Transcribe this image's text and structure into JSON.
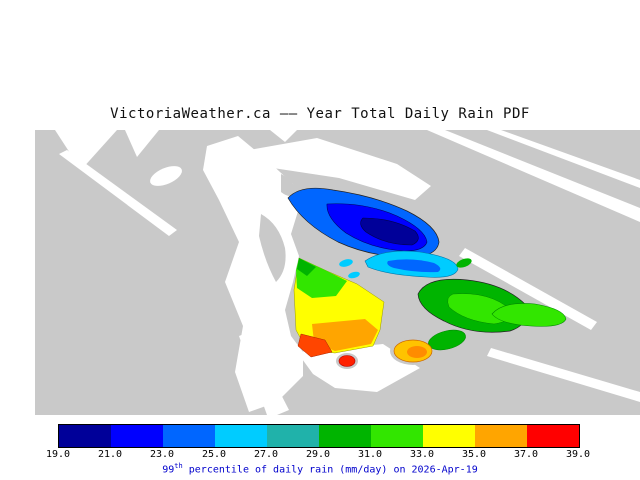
{
  "title": {
    "text": "VictoriaWeather.ca —— Year Total Daily Rain PDF"
  },
  "map": {
    "land_color": "#c9c9c9",
    "water_color": "#ffffff",
    "region_colors": {
      "blue_outer": "#0066ff",
      "blue_mid": "#0000ff",
      "blue_core": "#000099",
      "cyan_patch": "#00ccff",
      "cyan_core": "#0066ff",
      "teal_patch": "#20b2aa",
      "green_outer": "#00b400",
      "green_core": "#32e600",
      "lime_patch": "#32e600",
      "south_green": "#00b400",
      "green_nub": "#00b400",
      "pen_yellow": "#ffff00",
      "pen_green": "#32e600",
      "pen_green_dark": "#00b400",
      "pen_orange": "#ffa500",
      "pen_red": "#ff4500",
      "red_spot": "#ff2000",
      "oval_outer": "#ffc300",
      "oval_core": "#ff8c00"
    }
  },
  "colorbar": {
    "colors": [
      "#000099",
      "#0000ff",
      "#0066ff",
      "#00ccff",
      "#20b2aa",
      "#00b400",
      "#32e600",
      "#ffff00",
      "#ffa500",
      "#ff0000"
    ],
    "ticks": [
      "19.0",
      "21.0",
      "23.0",
      "25.0",
      "27.0",
      "29.0",
      "31.0",
      "33.0",
      "35.0",
      "37.0",
      "39.0"
    ]
  },
  "caption": {
    "prefix": "99",
    "sup": "th",
    "rest": " percentile of daily rain (mm/day) on 2026-Apr-19",
    "color": "#0000cc"
  },
  "chart_data": {
    "type": "heatmap",
    "subtype": "filled-contour-map",
    "title": "VictoriaWeather.ca —— Year Total Daily Rain PDF",
    "variable": "99th percentile of daily rain",
    "units": "mm/day",
    "date": "2026-Apr-19",
    "legend_position": "bottom",
    "grid": false,
    "scale": {
      "min": 19.0,
      "max": 39.0,
      "step": 2.0,
      "ticks": [
        19.0,
        21.0,
        23.0,
        25.0,
        27.0,
        29.0,
        31.0,
        33.0,
        35.0,
        37.0,
        39.0
      ],
      "colors": [
        "#000099",
        "#0000ff",
        "#0066ff",
        "#00ccff",
        "#20b2aa",
        "#00b400",
        "#32e600",
        "#ffff00",
        "#ffa500",
        "#ff0000"
      ]
    },
    "regions": [
      {
        "area": "upper-middle island band (elongated NW-SE blob)",
        "value_mmday": "19-25",
        "appearance": "blue with dark navy core"
      },
      {
        "area": "patches south-east of blue blob",
        "value_mmday": "25-29",
        "appearance": "cyan and teal"
      },
      {
        "area": "eastern island chain",
        "value_mmday": "29-33",
        "appearance": "green with bright lime cores"
      },
      {
        "area": "central peninsula",
        "value_mmday": "31-39",
        "appearance": "green to yellow to orange with red at south tip"
      },
      {
        "area": "small southern spots",
        "value_mmday": "33-39",
        "appearance": "isolated orange oval and red dot"
      }
    ]
  }
}
